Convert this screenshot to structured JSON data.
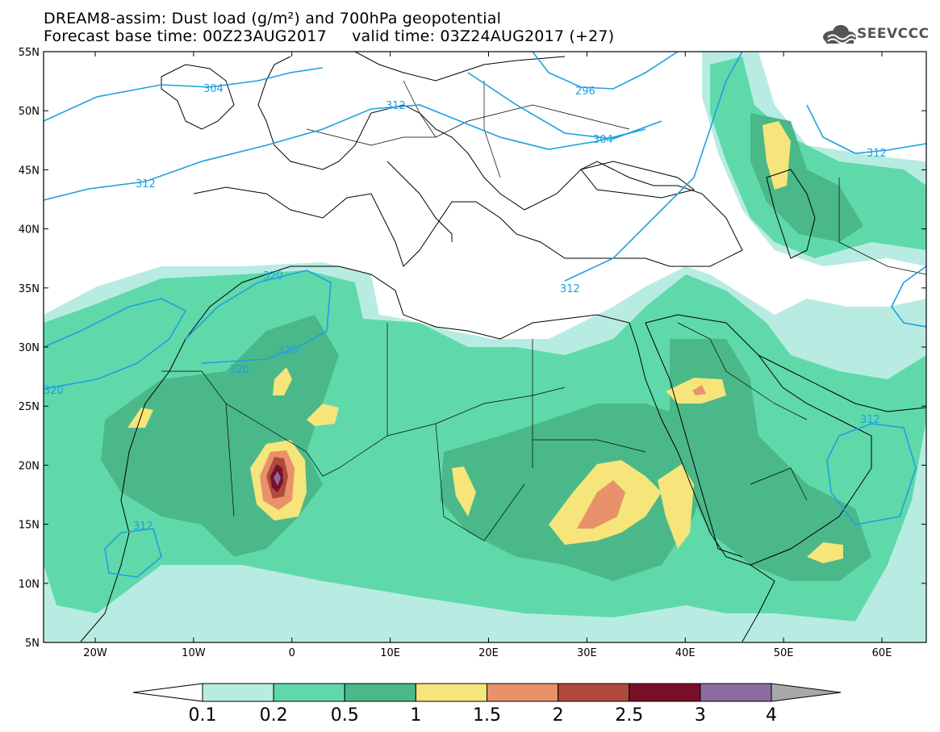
{
  "header": {
    "title_line1": "DREAM8-assim: Dust load (g/m²) and 700hPa geopotential",
    "title_line2": "Forecast base time: 00Z23AUG2017     valid time: 03Z24AUG2017 (+27)",
    "logo_text": "SEEVCCC"
  },
  "map": {
    "lat_labels": [
      "55N",
      "50N",
      "45N",
      "40N",
      "35N",
      "30N",
      "25N",
      "20N",
      "15N",
      "10N",
      "5N"
    ],
    "lon_labels": [
      "20W",
      "10W",
      "0",
      "10E",
      "20E",
      "30E",
      "40E",
      "50E",
      "60E"
    ],
    "contour_color": "#1ea0e0",
    "contour_labels": [
      "304",
      "312",
      "312",
      "296",
      "304",
      "320",
      "320",
      "320",
      "312",
      "320",
      "312",
      "312",
      "312"
    ],
    "colors": {
      "lightcyan": "#b8ece2",
      "mint": "#5fd9aa",
      "green": "#4bb889",
      "yellow": "#f5e57a",
      "salmon": "#e8916a",
      "brick": "#b04a3c",
      "maroon": "#7a0f2a",
      "purple": "#8d6aa0"
    }
  },
  "colorbar": {
    "labels": [
      "0.1",
      "0.2",
      "0.5",
      "1",
      "1.5",
      "2",
      "2.5",
      "3",
      "4"
    ],
    "colors": [
      "#ffffff",
      "#b8ece2",
      "#5fd9aa",
      "#4bb889",
      "#f5e57a",
      "#e8916a",
      "#b04a3c",
      "#7a0f2a",
      "#8d6aa0",
      "#a8a8a8"
    ]
  }
}
